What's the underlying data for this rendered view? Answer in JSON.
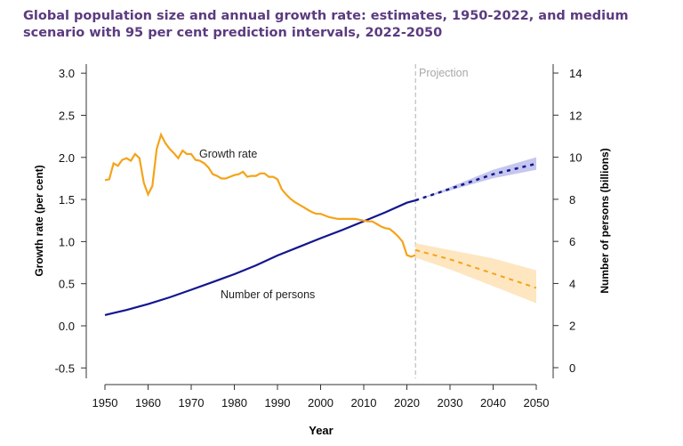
{
  "chart_data": {
    "type": "line",
    "title": "Global population size and annual growth rate: estimates, 1950-2022, and medium scenario with 95 per cent prediction intervals, 2022-2050",
    "xlabel": "Year",
    "ylabel_left": "Growth rate (per cent)",
    "ylabel_right": "Number of persons (billions)",
    "xlim": [
      1950,
      2050
    ],
    "ylim_left": [
      -0.5,
      3.0
    ],
    "ylim_right": [
      0,
      14
    ],
    "x_ticks": [
      1950,
      1960,
      1970,
      1980,
      1990,
      2000,
      2010,
      2020,
      2030,
      2040,
      2050
    ],
    "y_ticks_left": [
      "-0.5",
      "0.0",
      "0.5",
      "1.0",
      "1.5",
      "2.0",
      "2.5",
      "3.0"
    ],
    "y_ticks_right": [
      "0",
      "2",
      "4",
      "6",
      "8",
      "10",
      "12",
      "14"
    ],
    "grid": false,
    "projection_label": "Projection",
    "projection_start": 2022,
    "colors": {
      "growth": "#f5a31a",
      "growth_band": "#fde6c0",
      "population": "#13168f",
      "population_band": "#c5c7ef",
      "projection_line": "#b0b0b0",
      "title": "#5b3b7f"
    },
    "series": [
      {
        "name": "Growth rate",
        "axis": "left",
        "estimates": {
          "x": [
            1950,
            1951,
            1952,
            1953,
            1954,
            1955,
            1956,
            1957,
            1958,
            1959,
            1960,
            1961,
            1962,
            1963,
            1964,
            1965,
            1966,
            1967,
            1968,
            1969,
            1970,
            1971,
            1972,
            1973,
            1974,
            1975,
            1976,
            1977,
            1978,
            1979,
            1980,
            1981,
            1982,
            1983,
            1984,
            1985,
            1986,
            1987,
            1988,
            1989,
            1990,
            1991,
            1992,
            1993,
            1994,
            1995,
            1996,
            1997,
            1998,
            1999,
            2000,
            2001,
            2002,
            2003,
            2004,
            2005,
            2006,
            2007,
            2008,
            2009,
            2010,
            2011,
            2012,
            2013,
            2014,
            2015,
            2016,
            2017,
            2018,
            2019,
            2020,
            2021,
            2022
          ],
          "y": [
            1.73,
            1.74,
            1.93,
            1.9,
            1.97,
            1.99,
            1.96,
            2.04,
            1.99,
            1.7,
            1.56,
            1.66,
            2.1,
            2.27,
            2.17,
            2.1,
            2.05,
            1.99,
            2.08,
            2.04,
            2.04,
            1.97,
            1.96,
            1.93,
            1.88,
            1.8,
            1.78,
            1.75,
            1.75,
            1.77,
            1.79,
            1.8,
            1.83,
            1.77,
            1.78,
            1.78,
            1.81,
            1.81,
            1.77,
            1.77,
            1.74,
            1.62,
            1.56,
            1.51,
            1.47,
            1.44,
            1.41,
            1.38,
            1.35,
            1.33,
            1.33,
            1.31,
            1.29,
            1.28,
            1.27,
            1.27,
            1.27,
            1.27,
            1.27,
            1.26,
            1.25,
            1.24,
            1.24,
            1.21,
            1.18,
            1.16,
            1.15,
            1.11,
            1.06,
            1.0,
            0.84,
            0.82,
            0.84
          ]
        },
        "projection": {
          "x": [
            2022,
            2030,
            2040,
            2050
          ],
          "y": [
            0.9,
            0.79,
            0.62,
            0.45
          ],
          "lower": [
            0.81,
            0.67,
            0.47,
            0.27
          ],
          "upper": [
            0.98,
            0.9,
            0.8,
            0.66
          ]
        }
      },
      {
        "name": "Number of persons",
        "axis": "right",
        "estimates": {
          "x": [
            1950,
            1955,
            1960,
            1965,
            1970,
            1975,
            1980,
            1985,
            1990,
            1995,
            2000,
            2005,
            2010,
            2015,
            2020,
            2022
          ],
          "y": [
            2.5,
            2.74,
            3.02,
            3.34,
            3.7,
            4.07,
            4.44,
            4.86,
            5.33,
            5.74,
            6.15,
            6.54,
            6.96,
            7.38,
            7.84,
            7.95
          ]
        },
        "projection": {
          "x": [
            2022,
            2030,
            2040,
            2050
          ],
          "y": [
            7.95,
            8.5,
            9.19,
            9.69
          ],
          "lower": [
            7.95,
            8.42,
            9.0,
            9.4
          ],
          "upper": [
            7.95,
            8.58,
            9.4,
            10.0
          ]
        }
      }
    ]
  }
}
